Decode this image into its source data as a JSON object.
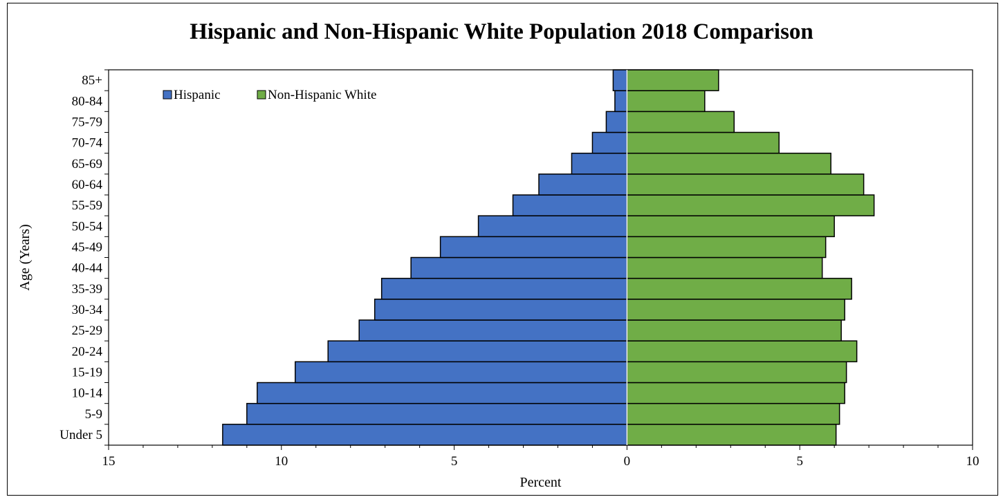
{
  "chart_data": {
    "type": "bar",
    "orientation": "horizontal-population-pyramid",
    "title": "Hispanic and Non-Hispanic White Population 2018 Comparison",
    "xlabel": "Percent",
    "ylabel": "Age (Years)",
    "categories": [
      "Under 5",
      "5-9",
      "10-14",
      "15-19",
      "20-24",
      "25-29",
      "30-34",
      "35-39",
      "40-44",
      "45-49",
      "50-54",
      "55-59",
      "60-64",
      "65-69",
      "70-74",
      "75-79",
      "80-84",
      "85+"
    ],
    "series": [
      {
        "name": "Hispanic",
        "side": "left",
        "color": "#4472C4",
        "values": [
          11.7,
          11.0,
          10.7,
          9.6,
          8.65,
          7.75,
          7.3,
          7.1,
          6.25,
          5.4,
          4.3,
          3.3,
          2.55,
          1.6,
          1.0,
          0.6,
          0.35,
          0.4
        ]
      },
      {
        "name": "Non-Hispanic White",
        "side": "right",
        "color": "#70AD47",
        "values": [
          6.05,
          6.15,
          6.3,
          6.35,
          6.65,
          6.2,
          6.3,
          6.5,
          5.65,
          5.75,
          6.0,
          7.15,
          6.85,
          5.9,
          4.4,
          3.1,
          2.25,
          2.65
        ]
      }
    ],
    "xlim": [
      -15,
      10
    ],
    "x_tick_values": [
      -15,
      -10,
      -5,
      0,
      5,
      10
    ],
    "x_tick_labels": [
      "15",
      "10",
      "5",
      "0",
      "5",
      "10"
    ],
    "grid": false,
    "legend_position": "top-left inside plot area"
  }
}
